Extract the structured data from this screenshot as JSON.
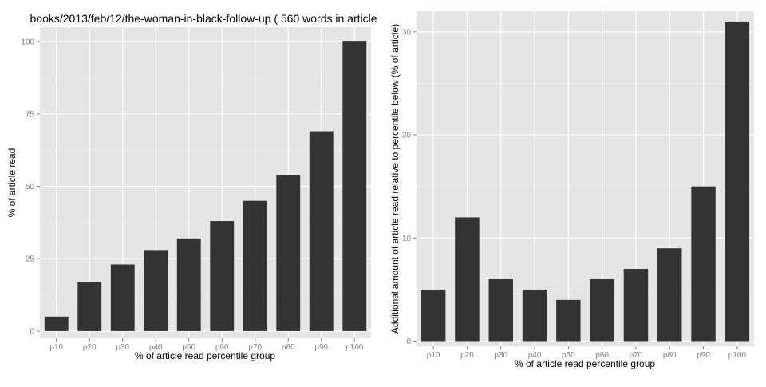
{
  "figure": {
    "title": "books/2013/feb/12/the-woman-in-black-follow-up ( 560 words in article"
  },
  "chart_data": [
    {
      "type": "bar",
      "title": "books/2013/feb/12/the-woman-in-black-follow-up ( 560 words in article",
      "xlabel": "% of article read percentile group",
      "ylabel": "% of article read",
      "categories": [
        "p10",
        "p20",
        "p30",
        "p40",
        "p50",
        "p60",
        "p70",
        "p80",
        "p90",
        "p100"
      ],
      "values": [
        5,
        17,
        23,
        28,
        32,
        38,
        45,
        54,
        69,
        100
      ],
      "ylim": [
        -2.5,
        105
      ],
      "yticks": [
        0,
        25,
        50,
        75,
        100
      ],
      "grid": true,
      "bar_color": "#333333",
      "panel_color": "#e5e5e5"
    },
    {
      "type": "bar",
      "title": "",
      "xlabel": "% of article read percentile group",
      "ylabel": "Additional amount of article read relative to percentile below (% of article)",
      "categories": [
        "p10",
        "p20",
        "p30",
        "p40",
        "p50",
        "p60",
        "p70",
        "p80",
        "p90",
        "p100"
      ],
      "values": [
        5,
        12,
        6,
        5,
        4,
        6,
        7,
        9,
        15,
        31
      ],
      "ylim": [
        -0.5,
        32
      ],
      "yticks": [
        0,
        10,
        20,
        30
      ],
      "grid": true,
      "bar_color": "#333333",
      "panel_color": "#e5e5e5"
    }
  ]
}
